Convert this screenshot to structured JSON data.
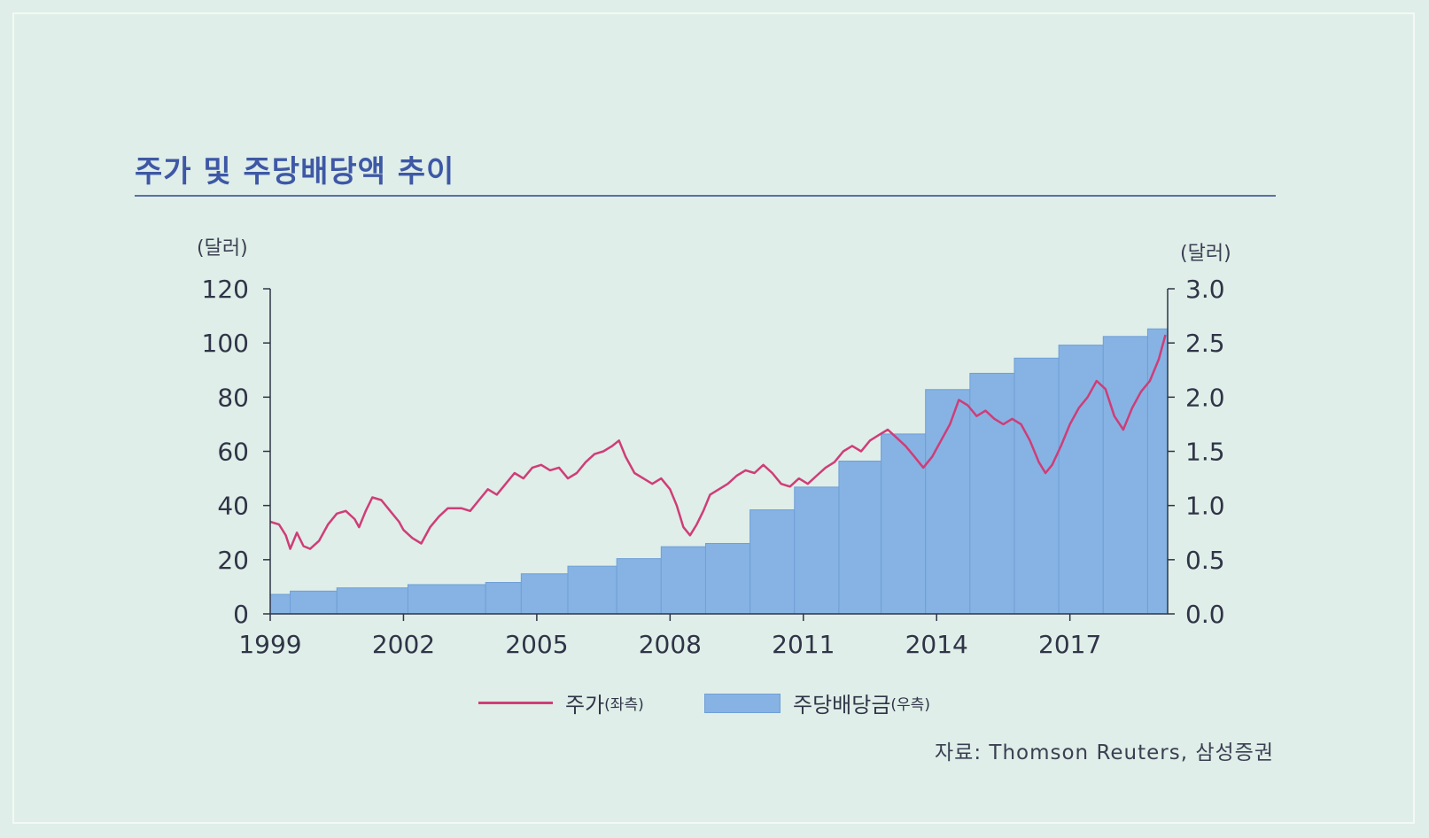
{
  "title": "주가 및 주당배당액 추이",
  "chart_data": {
    "type": "line+area",
    "title": "주가 및 주당배당액 추이",
    "left_axis": {
      "unit": "(달러)",
      "range": [
        0,
        120
      ],
      "ticks": [
        "120",
        "100",
        "80",
        "60",
        "40",
        "20",
        "0"
      ],
      "tick_values": [
        120,
        100,
        80,
        60,
        40,
        20,
        0
      ]
    },
    "right_axis": {
      "unit": "(달러)",
      "range": [
        0,
        3.0
      ],
      "ticks": [
        "3.0",
        "2.5",
        "2.0",
        "1.5",
        "1.0",
        "0.5",
        "0.0"
      ],
      "tick_values": [
        3.0,
        2.5,
        2.0,
        1.5,
        1.0,
        0.5,
        0.0
      ]
    },
    "x_range": [
      1999,
      2019.2
    ],
    "x_ticks": [
      "1999",
      "2002",
      "2005",
      "2008",
      "2011",
      "2014",
      "2017"
    ],
    "x_tick_values": [
      1999,
      2002,
      2005,
      2008,
      2011,
      2014,
      2017
    ],
    "series": [
      {
        "name": "주가",
        "axis_note": "(좌측)",
        "type": "line",
        "color": "#cf3d78",
        "points": [
          [
            1999.0,
            34
          ],
          [
            1999.2,
            33
          ],
          [
            1999.35,
            29
          ],
          [
            1999.45,
            24
          ],
          [
            1999.6,
            30
          ],
          [
            1999.75,
            25
          ],
          [
            1999.9,
            24
          ],
          [
            2000.1,
            27
          ],
          [
            2000.3,
            33
          ],
          [
            2000.5,
            37
          ],
          [
            2000.7,
            38
          ],
          [
            2000.9,
            35
          ],
          [
            2001.0,
            32
          ],
          [
            2001.15,
            38
          ],
          [
            2001.3,
            43
          ],
          [
            2001.5,
            42
          ],
          [
            2001.7,
            38
          ],
          [
            2001.9,
            34
          ],
          [
            2002.0,
            31
          ],
          [
            2002.2,
            28
          ],
          [
            2002.4,
            26
          ],
          [
            2002.6,
            32
          ],
          [
            2002.8,
            36
          ],
          [
            2003.0,
            39
          ],
          [
            2003.3,
            39
          ],
          [
            2003.5,
            38
          ],
          [
            2003.7,
            42
          ],
          [
            2003.9,
            46
          ],
          [
            2004.1,
            44
          ],
          [
            2004.3,
            48
          ],
          [
            2004.5,
            52
          ],
          [
            2004.7,
            50
          ],
          [
            2004.9,
            54
          ],
          [
            2005.1,
            55
          ],
          [
            2005.3,
            53
          ],
          [
            2005.5,
            54
          ],
          [
            2005.7,
            50
          ],
          [
            2005.9,
            52
          ],
          [
            2006.1,
            56
          ],
          [
            2006.3,
            59
          ],
          [
            2006.5,
            60
          ],
          [
            2006.7,
            62
          ],
          [
            2006.85,
            64
          ],
          [
            2007.0,
            58
          ],
          [
            2007.2,
            52
          ],
          [
            2007.4,
            50
          ],
          [
            2007.6,
            48
          ],
          [
            2007.8,
            50
          ],
          [
            2008.0,
            46
          ],
          [
            2008.15,
            40
          ],
          [
            2008.3,
            32
          ],
          [
            2008.45,
            29
          ],
          [
            2008.6,
            33
          ],
          [
            2008.75,
            38
          ],
          [
            2008.9,
            44
          ],
          [
            2009.1,
            46
          ],
          [
            2009.3,
            48
          ],
          [
            2009.5,
            51
          ],
          [
            2009.7,
            53
          ],
          [
            2009.9,
            52
          ],
          [
            2010.1,
            55
          ],
          [
            2010.3,
            52
          ],
          [
            2010.5,
            48
          ],
          [
            2010.7,
            47
          ],
          [
            2010.9,
            50
          ],
          [
            2011.1,
            48
          ],
          [
            2011.3,
            51
          ],
          [
            2011.5,
            54
          ],
          [
            2011.7,
            56
          ],
          [
            2011.9,
            60
          ],
          [
            2012.1,
            62
          ],
          [
            2012.3,
            60
          ],
          [
            2012.5,
            64
          ],
          [
            2012.7,
            66
          ],
          [
            2012.9,
            68
          ],
          [
            2013.1,
            65
          ],
          [
            2013.3,
            62
          ],
          [
            2013.5,
            58
          ],
          [
            2013.7,
            54
          ],
          [
            2013.9,
            58
          ],
          [
            2014.1,
            64
          ],
          [
            2014.3,
            70
          ],
          [
            2014.5,
            79
          ],
          [
            2014.7,
            77
          ],
          [
            2014.9,
            73
          ],
          [
            2015.1,
            75
          ],
          [
            2015.3,
            72
          ],
          [
            2015.5,
            70
          ],
          [
            2015.7,
            72
          ],
          [
            2015.9,
            70
          ],
          [
            2016.1,
            64
          ],
          [
            2016.3,
            56
          ],
          [
            2016.45,
            52
          ],
          [
            2016.6,
            55
          ],
          [
            2016.8,
            62
          ],
          [
            2017.0,
            70
          ],
          [
            2017.2,
            76
          ],
          [
            2017.4,
            80
          ],
          [
            2017.6,
            86
          ],
          [
            2017.8,
            83
          ],
          [
            2018.0,
            73
          ],
          [
            2018.2,
            68
          ],
          [
            2018.4,
            76
          ],
          [
            2018.6,
            82
          ],
          [
            2018.8,
            86
          ],
          [
            2019.0,
            94
          ],
          [
            2019.15,
            103
          ]
        ]
      },
      {
        "name": "주당배당금",
        "axis_note": "(우측)",
        "type": "step-area",
        "color": "#86b3e3",
        "steps": [
          [
            1999.0,
            0.18
          ],
          [
            1999.45,
            0.21
          ],
          [
            2000.5,
            0.24
          ],
          [
            2002.1,
            0.27
          ],
          [
            2003.85,
            0.29
          ],
          [
            2004.65,
            0.37
          ],
          [
            2005.7,
            0.44
          ],
          [
            2006.8,
            0.51
          ],
          [
            2007.8,
            0.62
          ],
          [
            2008.8,
            0.65
          ],
          [
            2009.8,
            0.96
          ],
          [
            2010.8,
            1.17
          ],
          [
            2011.8,
            1.41
          ],
          [
            2012.75,
            1.66
          ],
          [
            2013.75,
            2.07
          ],
          [
            2014.75,
            2.22
          ],
          [
            2015.75,
            2.36
          ],
          [
            2016.75,
            2.48
          ],
          [
            2017.75,
            2.56
          ],
          [
            2018.75,
            2.63
          ],
          [
            2019.2,
            2.63
          ]
        ]
      }
    ],
    "source": "자료: Thomson Reuters, 삼성증권"
  },
  "legend": {
    "price_label": "주가",
    "price_note": "(좌측)",
    "div_label": "주당배당금",
    "div_note": "(우측)"
  }
}
